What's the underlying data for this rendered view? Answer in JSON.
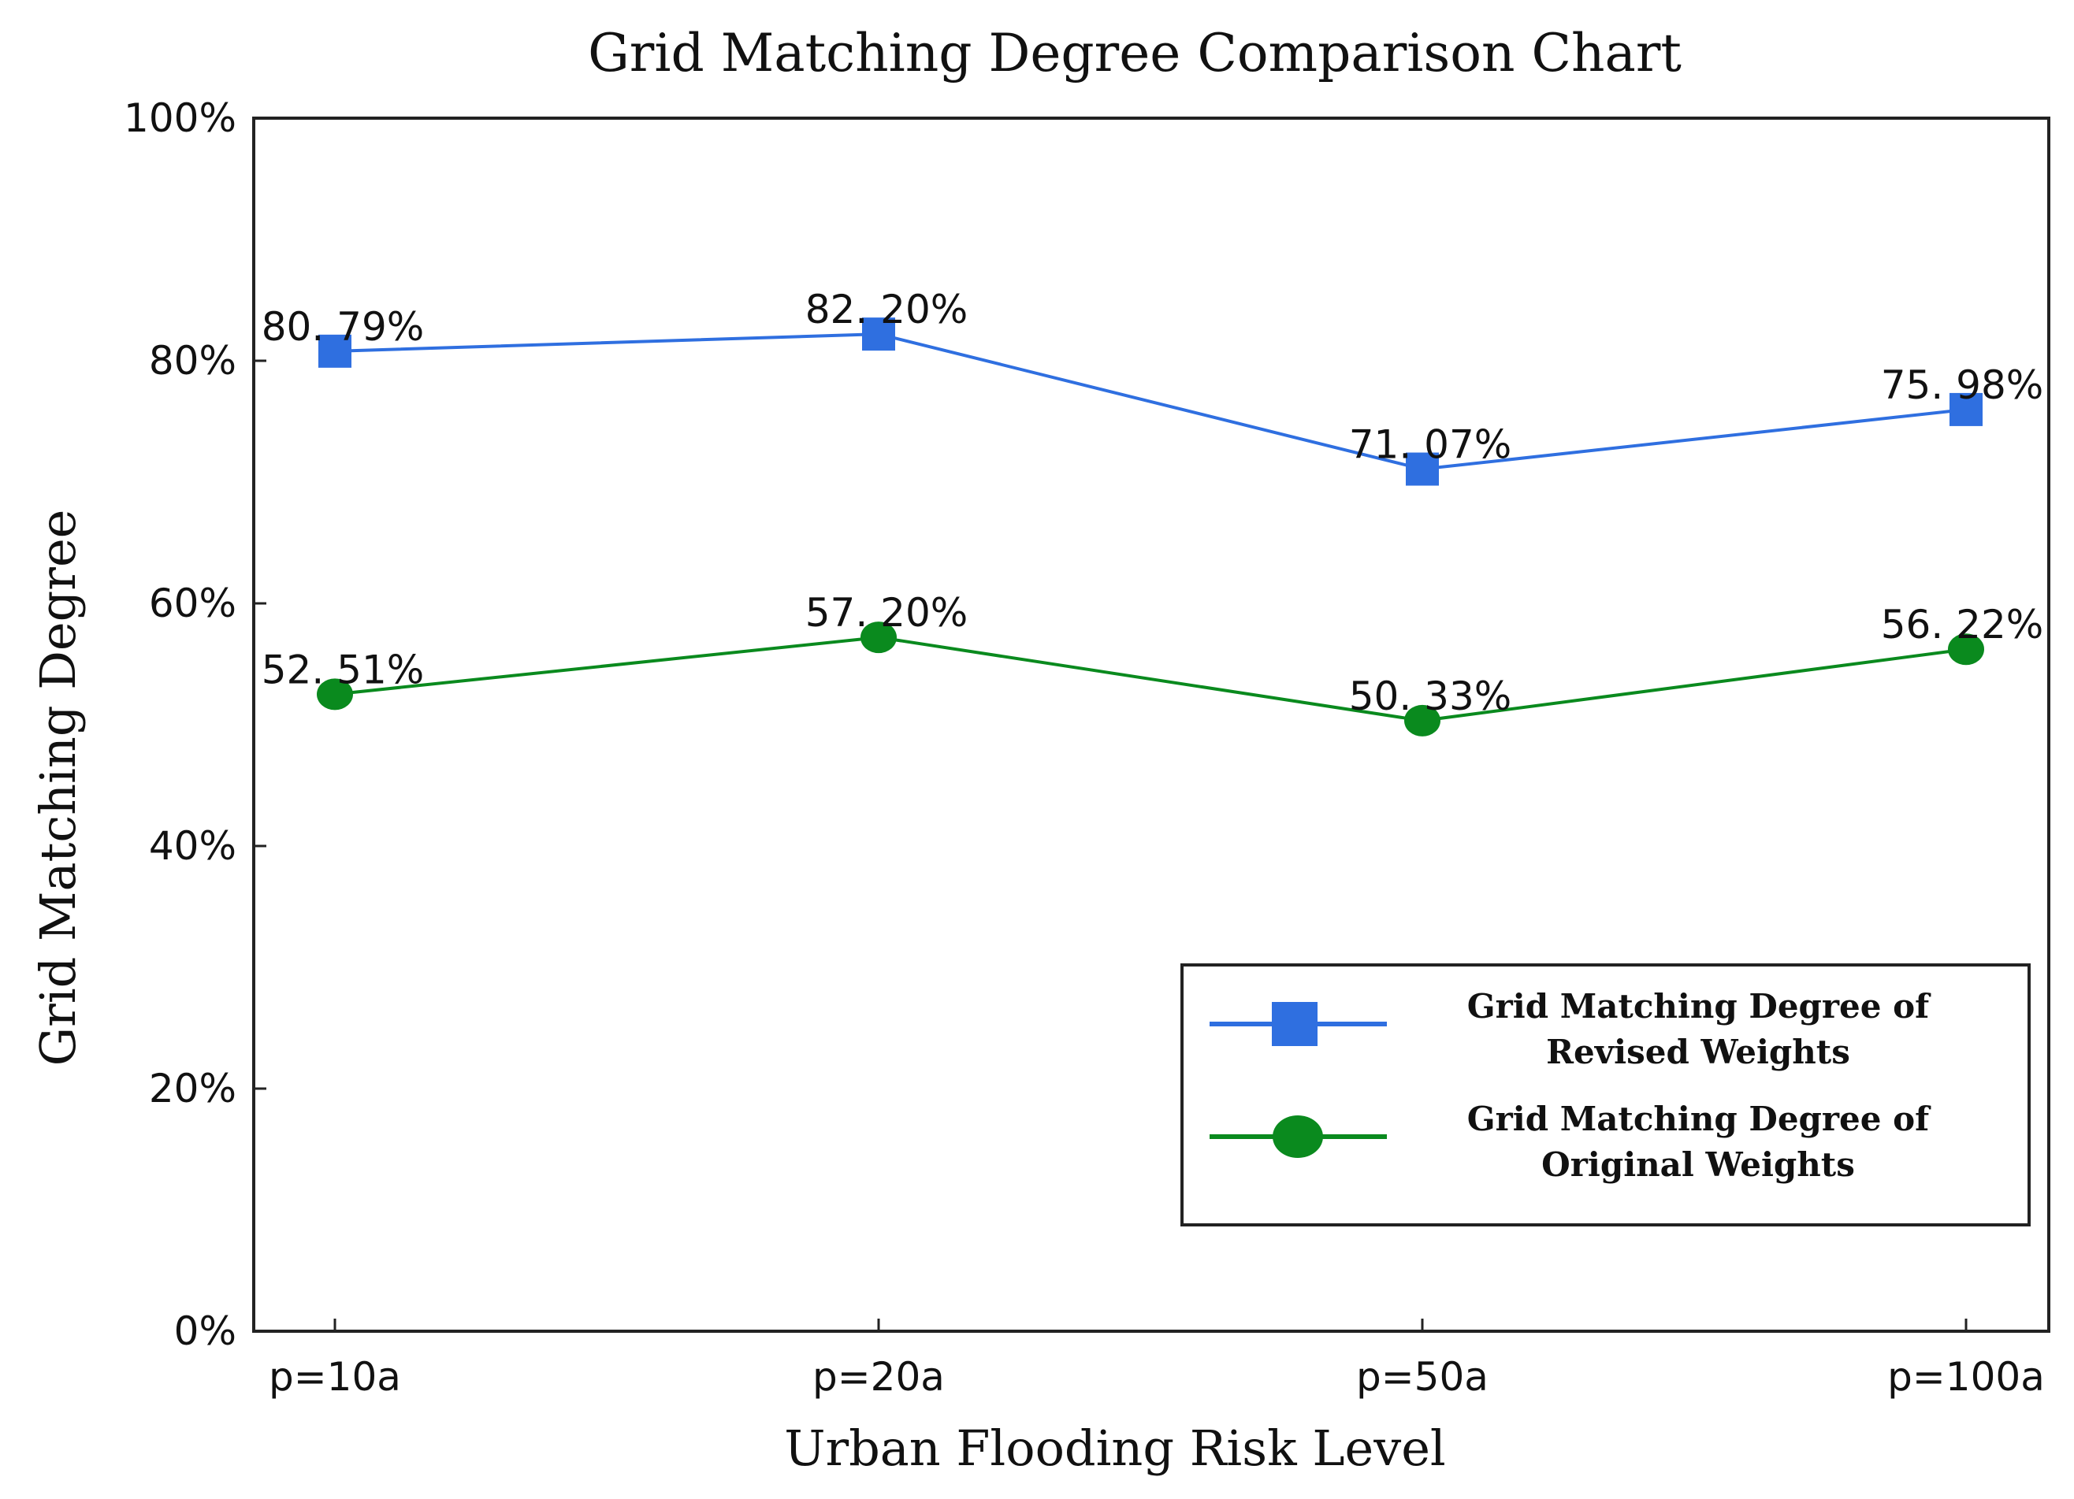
{
  "chart_data": {
    "type": "line",
    "title": "Grid Matching Degree Comparison Chart",
    "xlabel": "Urban Flooding Risk Level",
    "ylabel": "Grid Matching Degree",
    "categories": [
      "p=10a",
      "p=20a",
      "p=50a",
      "p=100a"
    ],
    "ylim": [
      0,
      100
    ],
    "yticks": [
      0,
      20,
      40,
      60,
      80,
      100
    ],
    "ytick_labels": [
      "0%",
      "20%",
      "40%",
      "60%",
      "80%",
      "100%"
    ],
    "grid": false,
    "legend_position": "lower-right",
    "series": [
      {
        "name": "Grid Matching Degree of Revised Weights",
        "legend_lines": [
          "Grid Matching Degree of",
          "Revised Weights"
        ],
        "values": [
          80.79,
          82.2,
          71.07,
          75.98
        ],
        "labels": [
          "80. 79%",
          "82. 20%",
          "71. 07%",
          "75. 98%"
        ],
        "color": "#2f6fe0",
        "marker": "square"
      },
      {
        "name": "Grid Matching Degree of Original Weights",
        "legend_lines": [
          "Grid Matching Degree of",
          "Original Weights"
        ],
        "values": [
          52.51,
          57.2,
          50.33,
          56.22
        ],
        "labels": [
          "52. 51%",
          "57. 20%",
          "50. 33%",
          "56. 22%"
        ],
        "color": "#0a8a1e",
        "marker": "circle"
      }
    ]
  }
}
